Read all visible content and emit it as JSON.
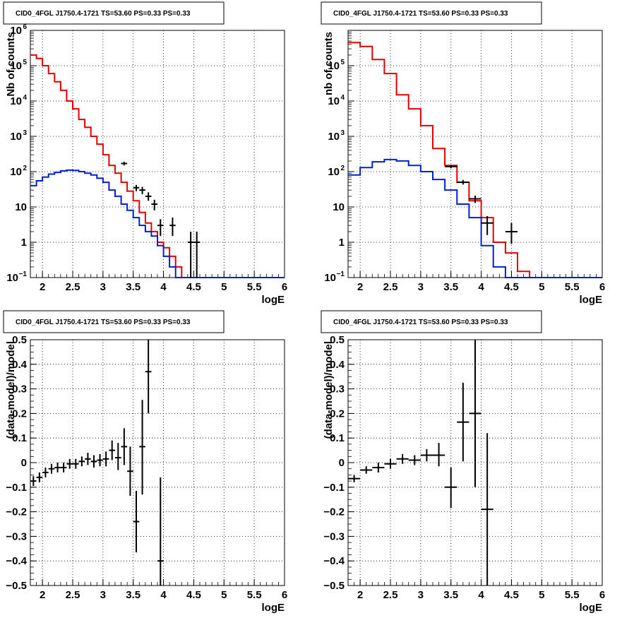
{
  "chart_data": [
    {
      "type": "line",
      "title": "CID0_4FGL J1750.4-1721 TS=53.60 PS=0.33 PS=0.33",
      "xlabel": "logE",
      "ylabel": "Nb of counts",
      "xlim": [
        1.8,
        6.0
      ],
      "ylim": [
        0.1,
        1000000
      ],
      "yscale": "log",
      "grid": true,
      "xticks": [
        "2",
        "2.5",
        "3",
        "3.5",
        "4",
        "4.5",
        "5",
        "5.5",
        "6"
      ],
      "yticks": [
        {
          "v": 0.1,
          "base": "10",
          "exp": "−1"
        },
        {
          "v": 1,
          "base": "1",
          "exp": ""
        },
        {
          "v": 10,
          "base": "10",
          "exp": ""
        },
        {
          "v": 100,
          "base": "10",
          "exp": "2"
        },
        {
          "v": 1000,
          "base": "10",
          "exp": "3"
        },
        {
          "v": 10000,
          "base": "10",
          "exp": "4"
        },
        {
          "v": 100000,
          "base": "10",
          "exp": "5"
        },
        {
          "v": 1000000,
          "base": "10",
          "exp": "6"
        }
      ],
      "series": [
        {
          "color": "#e00000",
          "style": "step",
          "edges": [
            1.8,
            1.9,
            2.0,
            2.1,
            2.2,
            2.3,
            2.4,
            2.5,
            2.6,
            2.7,
            2.8,
            2.9,
            3.0,
            3.1,
            3.2,
            3.3,
            3.4,
            3.5,
            3.6,
            3.7,
            3.8,
            3.9,
            4.0,
            4.1,
            4.2,
            4.3,
            4.4,
            4.5,
            4.6,
            4.7,
            4.8,
            4.9,
            5.0,
            5.1,
            5.2,
            5.3,
            5.4,
            5.5,
            5.6,
            5.7,
            5.8,
            5.9,
            6.0
          ],
          "values": [
            200000,
            160000,
            100000,
            60000,
            35000,
            20000,
            10000,
            6000,
            3000,
            1800,
            1000,
            600,
            300,
            150,
            90,
            50,
            28,
            15,
            7,
            3.5,
            2,
            1,
            0.7,
            0.4,
            0.2,
            0.1,
            0.1,
            0.1,
            0.1,
            0.1,
            0.1,
            0.1,
            0.1,
            0.1,
            0.1,
            0.1,
            0.1,
            0.1,
            0.1,
            0.1,
            0.1,
            0.1
          ]
        },
        {
          "color": "#0020d0",
          "style": "step",
          "edges": [
            1.8,
            1.9,
            2.0,
            2.1,
            2.2,
            2.3,
            2.4,
            2.5,
            2.6,
            2.7,
            2.8,
            2.9,
            3.0,
            3.1,
            3.2,
            3.3,
            3.4,
            3.5,
            3.6,
            3.7,
            3.8,
            3.9,
            4.0,
            4.1,
            4.2,
            4.3,
            4.4,
            4.5,
            4.6,
            4.7,
            4.8,
            4.9,
            5.0,
            5.1,
            5.2,
            5.3,
            5.4,
            5.5,
            5.6,
            5.7,
            5.8,
            5.9,
            6.0
          ],
          "values": [
            40,
            55,
            70,
            85,
            95,
            105,
            110,
            108,
            100,
            90,
            80,
            65,
            50,
            30,
            20,
            12,
            8,
            5,
            3,
            2,
            1.5,
            0.8,
            0.4,
            0.2,
            0.1,
            0.1,
            0.1,
            0.1,
            0.1,
            0.1,
            0.1,
            0.1,
            0.1,
            0.1,
            0.1,
            0.1,
            0.1,
            0.1,
            0.1,
            0.1,
            0.1,
            0.1
          ]
        },
        {
          "color": "#000000",
          "style": "errorbar",
          "points": [
            {
              "x": 3.35,
              "y": 170,
              "dx": 0.05,
              "ylo": 150,
              "yhi": 190
            },
            {
              "x": 3.55,
              "y": 35,
              "dx": 0.05,
              "ylo": 28,
              "yhi": 42
            },
            {
              "x": 3.65,
              "y": 30,
              "dx": 0.05,
              "ylo": 23,
              "yhi": 37
            },
            {
              "x": 3.75,
              "y": 20,
              "dx": 0.05,
              "ylo": 15,
              "yhi": 26
            },
            {
              "x": 3.85,
              "y": 12,
              "dx": 0.05,
              "ylo": 8,
              "yhi": 16
            },
            {
              "x": 3.95,
              "y": 3,
              "dx": 0.05,
              "ylo": 1.5,
              "yhi": 4.5
            },
            {
              "x": 4.15,
              "y": 3,
              "dx": 0.05,
              "ylo": 1.5,
              "yhi": 5
            },
            {
              "x": 4.45,
              "y": 1,
              "dx": 0.05,
              "ylo": 0.1,
              "yhi": 2
            },
            {
              "x": 4.55,
              "y": 1,
              "dx": 0.05,
              "ylo": 0.1,
              "yhi": 2
            }
          ]
        }
      ]
    },
    {
      "type": "line",
      "title": "CID0_4FGL J1750.4-1721 TS=53.60 PS=0.33 PS=0.33",
      "xlabel": "logE",
      "ylabel": "nb of counts",
      "xlim": [
        1.8,
        6.0
      ],
      "ylim": [
        0.1,
        1000000
      ],
      "yscale": "log",
      "grid": true,
      "xticks": [
        "2",
        "2.5",
        "3",
        "3.5",
        "4",
        "4.5",
        "5",
        "5.5",
        "6"
      ],
      "yticks": [
        {
          "v": 0.1,
          "base": "10",
          "exp": "−1"
        },
        {
          "v": 1,
          "base": "1",
          "exp": ""
        },
        {
          "v": 10,
          "base": "10",
          "exp": ""
        },
        {
          "v": 100,
          "base": "10",
          "exp": "2"
        },
        {
          "v": 1000,
          "base": "10",
          "exp": "3"
        },
        {
          "v": 10000,
          "base": "10",
          "exp": "4"
        },
        {
          "v": 100000,
          "base": "10",
          "exp": "5"
        }
      ],
      "series": [
        {
          "color": "#e00000",
          "style": "step",
          "edges": [
            1.8,
            2.0,
            2.2,
            2.4,
            2.6,
            2.8,
            3.0,
            3.2,
            3.4,
            3.6,
            3.8,
            4.0,
            4.2,
            4.4,
            4.6,
            4.8,
            5.0,
            5.2,
            5.4,
            5.6,
            5.8,
            6.0
          ],
          "values": [
            450000,
            350000,
            150000,
            60000,
            15000,
            6000,
            2000,
            450,
            150,
            50,
            15,
            5,
            1,
            0.5,
            0.15,
            0.1,
            0.1,
            0.1,
            0.1,
            0.1,
            0.1
          ]
        },
        {
          "color": "#0020d0",
          "style": "step",
          "edges": [
            1.8,
            2.0,
            2.2,
            2.4,
            2.6,
            2.8,
            3.0,
            3.2,
            3.4,
            3.6,
            3.8,
            4.0,
            4.2,
            4.4,
            4.6,
            4.8,
            5.0,
            5.2,
            5.4,
            5.6,
            5.8,
            6.0
          ],
          "values": [
            80,
            130,
            190,
            220,
            200,
            150,
            100,
            60,
            30,
            12,
            5,
            0.8,
            0.2,
            0.1,
            0.1,
            0.1,
            0.1,
            0.1,
            0.1,
            0.1,
            0.1
          ]
        },
        {
          "color": "#000000",
          "style": "errorbar",
          "points": [
            {
              "x": 3.5,
              "y": 140,
              "dx": 0.1,
              "ylo": 125,
              "yhi": 155
            },
            {
              "x": 3.7,
              "y": 50,
              "dx": 0.1,
              "ylo": 43,
              "yhi": 58
            },
            {
              "x": 3.9,
              "y": 17,
              "dx": 0.1,
              "ylo": 13,
              "yhi": 21
            },
            {
              "x": 4.1,
              "y": 3.5,
              "dx": 0.1,
              "ylo": 1.6,
              "yhi": 5.5
            },
            {
              "x": 4.5,
              "y": 2,
              "dx": 0.1,
              "ylo": 0.9,
              "yhi": 3.5
            }
          ]
        }
      ]
    },
    {
      "type": "scatter",
      "title": "CID0_4FGL J1750.4-1721 TS=53.60 PS=0.33 PS=0.33",
      "xlabel": "logE",
      "ylabel": "(data-model)/model",
      "xlim": [
        1.8,
        6.0
      ],
      "ylim": [
        -0.5,
        0.5
      ],
      "yscale": "linear",
      "grid": true,
      "xticks": [
        "2",
        "2.5",
        "3",
        "3.5",
        "4",
        "4.5",
        "5",
        "5.5",
        "6"
      ],
      "yticks": [
        {
          "v": -0.5,
          "label": "−0.5"
        },
        {
          "v": -0.4,
          "label": "−0.4"
        },
        {
          "v": -0.3,
          "label": "−0.3"
        },
        {
          "v": -0.2,
          "label": "−0.2"
        },
        {
          "v": -0.1,
          "label": "−0.1"
        },
        {
          "v": 0,
          "label": "0"
        },
        {
          "v": 0.1,
          "label": "0.1"
        },
        {
          "v": 0.2,
          "label": "0.2"
        },
        {
          "v": 0.3,
          "label": "0.3"
        },
        {
          "v": 0.4,
          "label": "0.4"
        },
        {
          "v": 0.5,
          "label": "0.5"
        }
      ],
      "series": [
        {
          "color": "#000000",
          "style": "errorbar",
          "points": [
            {
              "x": 1.85,
              "y": -0.075,
              "dx": 0.05,
              "ylo": -0.095,
              "yhi": -0.055
            },
            {
              "x": 1.95,
              "y": -0.06,
              "dx": 0.05,
              "ylo": -0.08,
              "yhi": -0.04
            },
            {
              "x": 2.05,
              "y": -0.04,
              "dx": 0.05,
              "ylo": -0.06,
              "yhi": -0.02
            },
            {
              "x": 2.15,
              "y": -0.025,
              "dx": 0.05,
              "ylo": -0.045,
              "yhi": -0.005
            },
            {
              "x": 2.25,
              "y": -0.02,
              "dx": 0.05,
              "ylo": -0.04,
              "yhi": 0.0
            },
            {
              "x": 2.35,
              "y": -0.02,
              "dx": 0.05,
              "ylo": -0.04,
              "yhi": 0.0
            },
            {
              "x": 2.45,
              "y": -0.005,
              "dx": 0.05,
              "ylo": -0.025,
              "yhi": 0.015
            },
            {
              "x": 2.55,
              "y": -0.005,
              "dx": 0.05,
              "ylo": -0.025,
              "yhi": 0.015
            },
            {
              "x": 2.65,
              "y": 0.005,
              "dx": 0.05,
              "ylo": -0.015,
              "yhi": 0.025
            },
            {
              "x": 2.75,
              "y": 0.015,
              "dx": 0.05,
              "ylo": -0.01,
              "yhi": 0.04
            },
            {
              "x": 2.85,
              "y": 0.005,
              "dx": 0.05,
              "ylo": -0.02,
              "yhi": 0.03
            },
            {
              "x": 2.95,
              "y": 0.01,
              "dx": 0.05,
              "ylo": -0.015,
              "yhi": 0.035
            },
            {
              "x": 3.05,
              "y": 0.015,
              "dx": 0.05,
              "ylo": -0.015,
              "yhi": 0.045
            },
            {
              "x": 3.15,
              "y": 0.05,
              "dx": 0.05,
              "ylo": 0.01,
              "yhi": 0.09
            },
            {
              "x": 3.25,
              "y": 0.02,
              "dx": 0.05,
              "ylo": -0.03,
              "yhi": 0.08
            },
            {
              "x": 3.35,
              "y": 0.065,
              "dx": 0.05,
              "ylo": -0.01,
              "yhi": 0.14
            },
            {
              "x": 3.45,
              "y": -0.035,
              "dx": 0.05,
              "ylo": -0.135,
              "yhi": 0.065
            },
            {
              "x": 3.55,
              "y": -0.24,
              "dx": 0.05,
              "ylo": -0.365,
              "yhi": -0.115
            },
            {
              "x": 3.65,
              "y": 0.065,
              "dx": 0.05,
              "ylo": -0.13,
              "yhi": 0.255
            },
            {
              "x": 3.75,
              "y": 0.37,
              "dx": 0.05,
              "ylo": 0.2,
              "yhi": 0.5
            },
            {
              "x": 3.95,
              "y": -0.4,
              "dx": 0.05,
              "ylo": -0.5,
              "yhi": -0.06
            }
          ]
        }
      ]
    },
    {
      "type": "scatter",
      "title": "CID0_4FGL J1750.4-1721 TS=53.60 PS=0.33 PS=0.33",
      "xlabel": "logE",
      "ylabel": "(data-model)/model",
      "xlim": [
        1.8,
        6.0
      ],
      "ylim": [
        -0.5,
        0.5
      ],
      "yscale": "linear",
      "grid": true,
      "xticks": [
        "2",
        "2.5",
        "3",
        "3.5",
        "4",
        "4.5",
        "5",
        "5.5",
        "6"
      ],
      "yticks": [
        {
          "v": -0.5,
          "label": "−0.5"
        },
        {
          "v": -0.4,
          "label": "−0.4"
        },
        {
          "v": -0.3,
          "label": "−0.3"
        },
        {
          "v": -0.2,
          "label": "−0.2"
        },
        {
          "v": -0.1,
          "label": "−0.1"
        },
        {
          "v": 0,
          "label": "0"
        },
        {
          "v": 0.1,
          "label": "0.1"
        },
        {
          "v": 0.2,
          "label": "0.2"
        },
        {
          "v": 0.3,
          "label": "0.3"
        },
        {
          "v": 0.4,
          "label": "0.4"
        },
        {
          "v": 0.5,
          "label": "0.5"
        }
      ],
      "series": [
        {
          "color": "#000000",
          "style": "errorbar",
          "points": [
            {
              "x": 1.9,
              "y": -0.065,
              "dx": 0.1,
              "ylo": -0.08,
              "yhi": -0.05
            },
            {
              "x": 2.1,
              "y": -0.03,
              "dx": 0.1,
              "ylo": -0.045,
              "yhi": -0.015
            },
            {
              "x": 2.3,
              "y": -0.02,
              "dx": 0.1,
              "ylo": -0.04,
              "yhi": 0.0
            },
            {
              "x": 2.5,
              "y": -0.005,
              "dx": 0.1,
              "ylo": -0.025,
              "yhi": 0.015
            },
            {
              "x": 2.7,
              "y": 0.015,
              "dx": 0.1,
              "ylo": -0.005,
              "yhi": 0.035
            },
            {
              "x": 2.9,
              "y": 0.01,
              "dx": 0.1,
              "ylo": -0.01,
              "yhi": 0.03
            },
            {
              "x": 3.1,
              "y": 0.03,
              "dx": 0.1,
              "ylo": 0.005,
              "yhi": 0.055
            },
            {
              "x": 3.3,
              "y": 0.03,
              "dx": 0.1,
              "ylo": -0.015,
              "yhi": 0.08
            },
            {
              "x": 3.5,
              "y": -0.1,
              "dx": 0.1,
              "ylo": -0.185,
              "yhi": -0.02
            },
            {
              "x": 3.7,
              "y": 0.165,
              "dx": 0.1,
              "ylo": 0.005,
              "yhi": 0.325
            },
            {
              "x": 3.9,
              "y": 0.2,
              "dx": 0.1,
              "ylo": -0.1,
              "yhi": 0.5
            },
            {
              "x": 4.1,
              "y": -0.19,
              "dx": 0.1,
              "ylo": -0.5,
              "yhi": 0.12
            }
          ]
        }
      ]
    }
  ]
}
